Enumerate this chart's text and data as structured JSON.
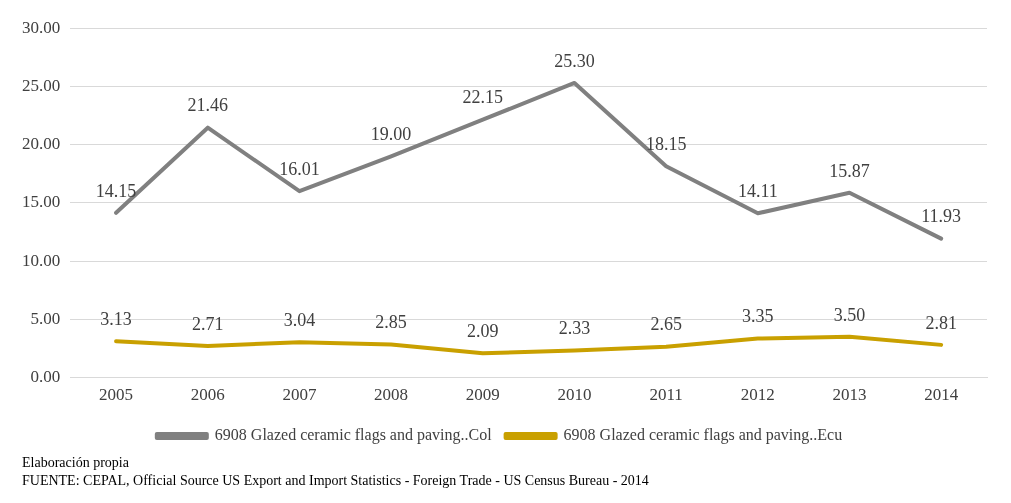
{
  "chart_data": {
    "type": "line",
    "categories": [
      "2005",
      "2006",
      "2007",
      "2008",
      "2009",
      "2010",
      "2011",
      "2012",
      "2013",
      "2014"
    ],
    "series": [
      {
        "name": "6908 Glazed ceramic flags and paving..Col",
        "color": "#808080",
        "values": [
          14.15,
          21.46,
          16.01,
          19.0,
          22.15,
          25.3,
          18.15,
          14.11,
          15.87,
          11.93
        ],
        "value_labels": [
          "14.15",
          "21.46",
          "16.01",
          "19.00",
          "22.15",
          "25.30",
          "18.15",
          "14.11",
          "15.87",
          "11.93"
        ]
      },
      {
        "name": "6908 Glazed ceramic flags and paving..Ecu",
        "color": "#c9a000",
        "values": [
          3.13,
          2.71,
          3.04,
          2.85,
          2.09,
          2.33,
          2.65,
          3.35,
          3.5,
          2.81
        ],
        "value_labels": [
          "3.13",
          "2.71",
          "3.04",
          "2.85",
          "2.09",
          "2.33",
          "2.65",
          "3.35",
          "3.50",
          "2.81"
        ]
      }
    ],
    "ylim": [
      0,
      30
    ],
    "yticks": [
      {
        "value": 0,
        "label": "0.00"
      },
      {
        "value": 5,
        "label": "5.00"
      },
      {
        "value": 10,
        "label": "10.00"
      },
      {
        "value": 15,
        "label": "15.00"
      },
      {
        "value": 20,
        "label": "20.00"
      },
      {
        "value": 25,
        "label": "25.00"
      },
      {
        "value": 30,
        "label": "30.00"
      }
    ],
    "grid": "y",
    "legend": "bottom",
    "marker": "none",
    "line_style": "solid",
    "annotations": [
      "Elaboración propia",
      "FUENTE: CEPAL, Official Source US Export and Import Statistics - Foreign Trade - US Census Bureau - 2014"
    ]
  }
}
